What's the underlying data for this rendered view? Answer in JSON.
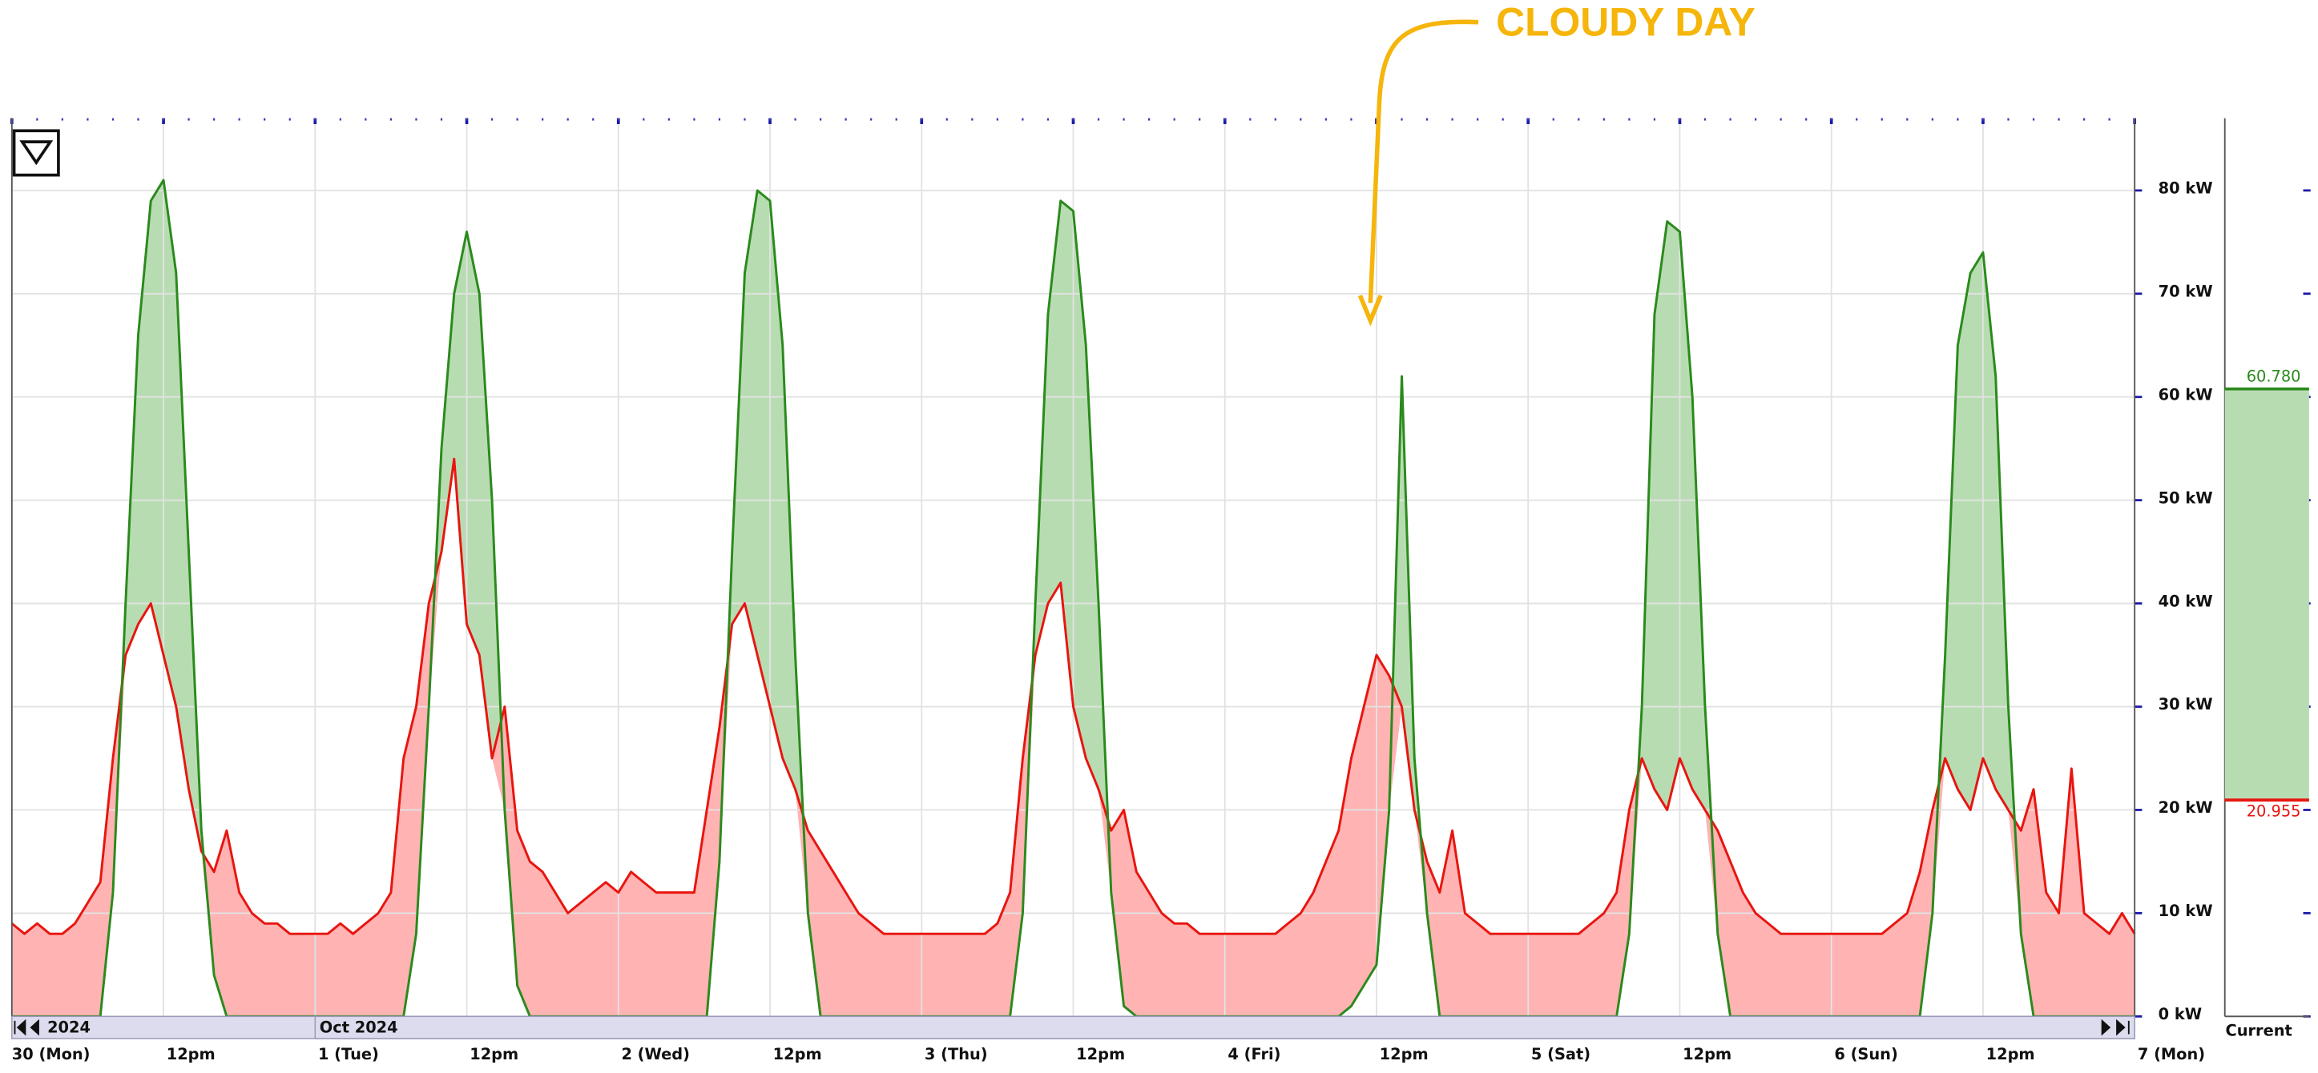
{
  "chart_data": {
    "type": "area",
    "annotation": "CLOUDY DAY",
    "xlim": [
      0,
      168
    ],
    "xticks": [
      {
        "value": 0,
        "label": "30 (Mon)"
      },
      {
        "value": 12,
        "label": "12pm"
      },
      {
        "value": 24,
        "label": "1 (Tue)"
      },
      {
        "value": 36,
        "label": "12pm"
      },
      {
        "value": 48,
        "label": "2 (Wed)"
      },
      {
        "value": 60,
        "label": "12pm"
      },
      {
        "value": 72,
        "label": "3 (Thu)"
      },
      {
        "value": 84,
        "label": "12pm"
      },
      {
        "value": 96,
        "label": "4 (Fri)"
      },
      {
        "value": 108,
        "label": "12pm"
      },
      {
        "value": 120,
        "label": "5 (Sat)"
      },
      {
        "value": 132,
        "label": "12pm"
      },
      {
        "value": 144,
        "label": "6 (Sun)"
      },
      {
        "value": 156,
        "label": "12pm"
      },
      {
        "value": 168,
        "label": "7 (Mon)"
      }
    ],
    "ylim": [
      0,
      87
    ],
    "yticks": [
      {
        "value": 0,
        "label": "0 kW"
      },
      {
        "value": 10,
        "label": "10 kW"
      },
      {
        "value": 20,
        "label": "20 kW"
      },
      {
        "value": 30,
        "label": "30 kW"
      },
      {
        "value": 40,
        "label": "40 kW"
      },
      {
        "value": 50,
        "label": "50 kW"
      },
      {
        "value": 60,
        "label": "60 kW"
      },
      {
        "value": 70,
        "label": "70 kW"
      },
      {
        "value": 80,
        "label": "80 kW"
      }
    ],
    "grid": true,
    "scrollbar_labels": [
      "2024",
      "Oct 2024"
    ],
    "series": [
      {
        "color": "#2a8a1c",
        "fill": "#b8dcb2",
        "values": [
          0,
          0,
          0,
          0,
          0,
          0,
          0,
          0,
          12,
          40,
          66,
          79,
          81,
          72,
          45,
          18,
          4,
          0,
          0,
          0,
          0,
          0,
          0,
          0,
          0,
          0,
          0,
          0,
          0,
          0,
          0,
          0,
          8,
          30,
          55,
          70,
          76,
          70,
          50,
          20,
          3,
          0,
          0,
          0,
          0,
          0,
          0,
          0,
          0,
          0,
          0,
          0,
          0,
          0,
          0,
          0,
          15,
          45,
          72,
          80,
          79,
          65,
          35,
          10,
          0,
          0,
          0,
          0,
          0,
          0,
          0,
          0,
          0,
          0,
          0,
          0,
          0,
          0,
          0,
          0,
          10,
          40,
          68,
          79,
          78,
          65,
          40,
          12,
          1,
          0,
          0,
          0,
          0,
          0,
          0,
          0,
          0,
          0,
          0,
          0,
          0,
          0,
          0,
          0,
          0,
          0,
          1,
          3,
          5,
          20,
          62,
          25,
          10,
          0,
          0,
          0,
          0,
          0,
          0,
          0,
          0,
          0,
          0,
          0,
          0,
          0,
          0,
          0,
          8,
          30,
          68,
          77,
          76,
          60,
          30,
          8,
          0,
          0,
          0,
          0,
          0,
          0,
          0,
          0,
          0,
          0,
          0,
          0,
          0,
          0,
          0,
          0,
          10,
          35,
          65,
          72,
          74,
          62,
          30,
          8,
          0,
          0,
          0,
          0,
          0,
          0,
          0,
          0,
          0
        ]
      },
      {
        "color": "#e8150f",
        "fill": "#ffb3b3",
        "values": [
          9,
          8,
          9,
          8,
          8,
          9,
          11,
          13,
          25,
          35,
          38,
          40,
          35,
          30,
          22,
          16,
          14,
          18,
          12,
          10,
          9,
          9,
          8,
          8,
          8,
          8,
          9,
          8,
          9,
          10,
          12,
          25,
          30,
          40,
          45,
          54,
          38,
          35,
          25,
          30,
          18,
          15,
          14,
          12,
          10,
          11,
          12,
          13,
          12,
          14,
          13,
          12,
          12,
          12,
          12,
          20,
          28,
          38,
          40,
          35,
          30,
          25,
          22,
          18,
          16,
          14,
          12,
          10,
          9,
          8,
          8,
          8,
          8,
          8,
          8,
          8,
          8,
          8,
          9,
          12,
          25,
          35,
          40,
          42,
          30,
          25,
          22,
          18,
          20,
          14,
          12,
          10,
          9,
          9,
          8,
          8,
          8,
          8,
          8,
          8,
          8,
          9,
          10,
          12,
          15,
          18,
          25,
          30,
          35,
          33,
          30,
          20,
          15,
          12,
          18,
          10,
          9,
          8,
          8,
          8,
          8,
          8,
          8,
          8,
          8,
          9,
          10,
          12,
          20,
          25,
          22,
          20,
          25,
          22,
          20,
          18,
          15,
          12,
          10,
          9,
          8,
          8,
          8,
          8,
          8,
          8,
          8,
          8,
          8,
          9,
          10,
          14,
          20,
          25,
          22,
          20,
          25,
          22,
          20,
          18,
          22,
          12,
          10,
          24,
          10,
          9,
          8,
          10,
          8
        ]
      }
    ],
    "current": {
      "label": "Current",
      "values": [
        60.78,
        20.955
      ],
      "value_labels": [
        "60.780",
        "20.955"
      ]
    }
  }
}
